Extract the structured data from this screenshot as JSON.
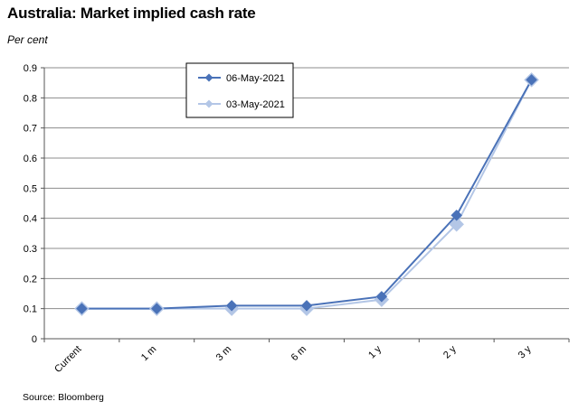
{
  "header": {
    "title": "Australia: Market implied cash rate",
    "unit": "Per cent"
  },
  "footer": {
    "source": "Source: Bloomberg"
  },
  "chart_data": {
    "type": "line",
    "title": "Australia: Market implied cash rate",
    "ylabel": "Per cent",
    "xlabel": "",
    "categories": [
      "Current",
      "1 m",
      "3 m",
      "6 m",
      "1 y",
      "2 y",
      "3 y"
    ],
    "ylim": [
      0,
      0.9
    ],
    "yticks": [
      0,
      0.1,
      0.2,
      0.3,
      0.4,
      0.5,
      0.6,
      0.7,
      0.8,
      0.9
    ],
    "grid": true,
    "legend_position": "top-left inside plot",
    "series": [
      {
        "name": "06-May-2021",
        "color": "#4a72b8",
        "marker": "diamond",
        "values": [
          0.1,
          0.1,
          0.11,
          0.11,
          0.14,
          0.41,
          0.86
        ]
      },
      {
        "name": "03-May-2021",
        "color": "#b3c6e6",
        "marker": "diamond",
        "values": [
          0.1,
          0.1,
          0.1,
          0.1,
          0.13,
          0.38,
          0.86
        ]
      }
    ]
  }
}
